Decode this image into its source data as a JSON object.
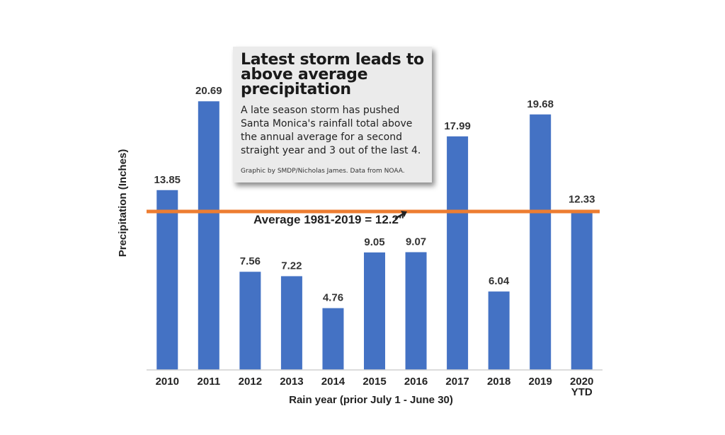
{
  "chart_data": {
    "type": "bar",
    "categories": [
      "2010",
      "2011",
      "2012",
      "2013",
      "2014",
      "2015",
      "2016",
      "2017",
      "2018",
      "2019",
      "2020\nYTD"
    ],
    "values": [
      13.85,
      20.69,
      7.56,
      7.22,
      4.76,
      9.05,
      9.07,
      17.99,
      6.04,
      19.68,
      12.33
    ],
    "value_labels": [
      "13.85",
      "20.69",
      "7.56",
      "7.22",
      "4.76",
      "9.05",
      "9.07",
      "17.99",
      "6.04",
      "19.68",
      "12.33"
    ],
    "title": "Latest storm leads to above average precipitation",
    "xlabel": "Rain year (prior July 1 - June 30)",
    "ylabel": "Precipitation (Inches)",
    "ylim": [
      0,
      22.5
    ],
    "grid": false,
    "reference_line": {
      "value": 12.2,
      "label": "Average 1981-2019 = 12.2\""
    },
    "colors": {
      "bar": "#4472c4",
      "average_line": "#ed7d31",
      "axis": "#d0d0d0"
    }
  },
  "info_box": {
    "title": "Latest storm leads to above average precipitation",
    "body": "A late season storm has pushed Santa Monica's rainfall total above the annual average for a second straight year and 3 out of the last 4.",
    "credit": "Graphic by SMDP/Nicholas James.  Data from NOAA."
  }
}
